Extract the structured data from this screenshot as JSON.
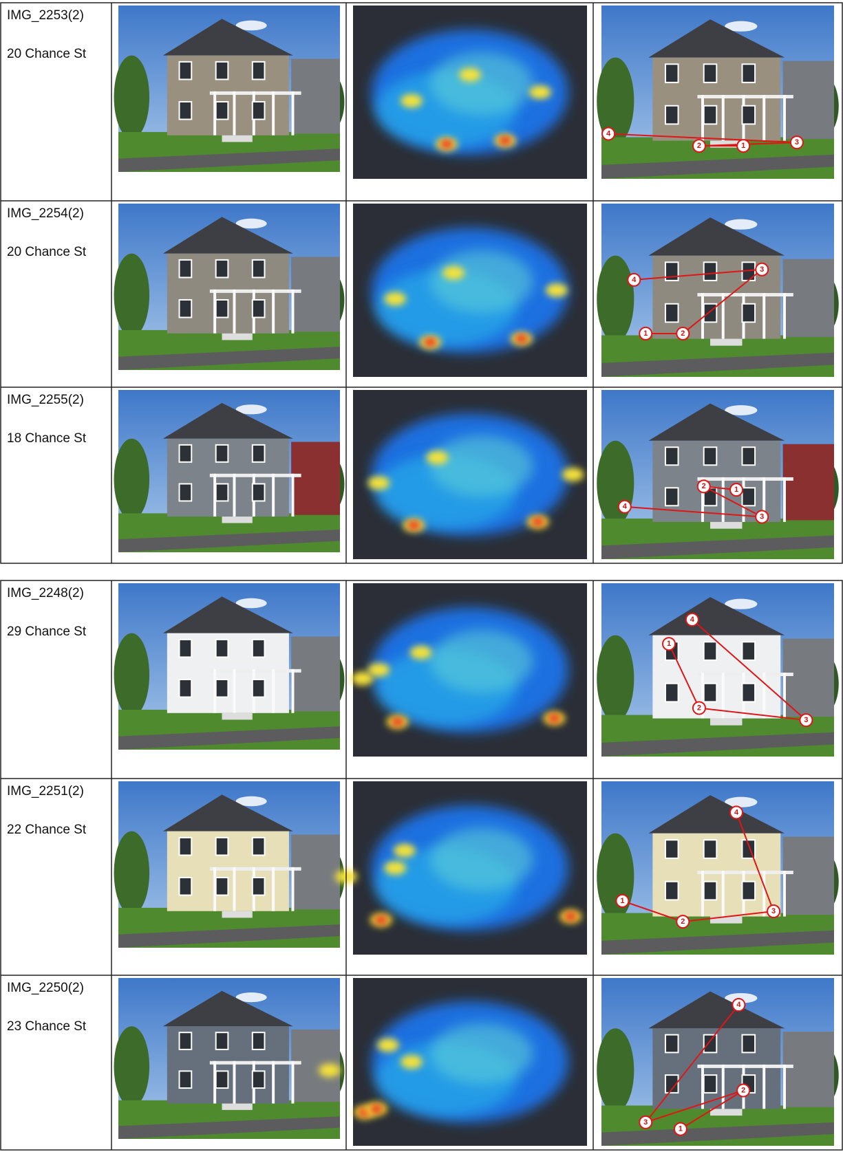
{
  "rows": [
    {
      "image_id": "IMG_2253(2)",
      "address": "20 Chance St",
      "scanpath": [
        "1",
        "2",
        "3",
        "4"
      ]
    },
    {
      "image_id": "IMG_2254(2)",
      "address": "20 Chance St",
      "scanpath": [
        "1",
        "2",
        "3",
        "4"
      ]
    },
    {
      "image_id": "IMG_2255(2)",
      "address": "18 Chance St",
      "scanpath": [
        "1",
        "2",
        "3",
        "4"
      ]
    },
    {
      "image_id": "IMG_2248(2)",
      "address": "29 Chance St",
      "scanpath": [
        "1",
        "2",
        "3",
        "4"
      ]
    },
    {
      "image_id": "IMG_2251(2)",
      "address": "22 Chance St",
      "scanpath": [
        "1",
        "2",
        "3",
        "4"
      ]
    },
    {
      "image_id": "IMG_2250(2)",
      "address": "23 Chance St",
      "scanpath": [
        "1",
        "2",
        "3",
        "4"
      ]
    }
  ]
}
